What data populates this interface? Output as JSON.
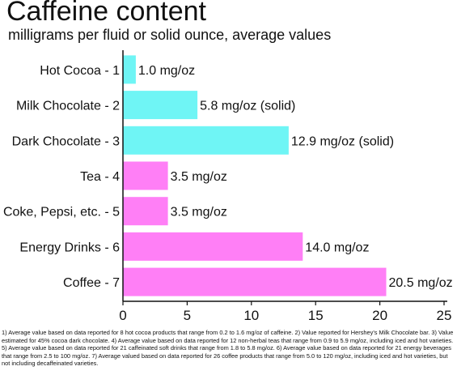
{
  "header": {
    "title": "Caffeine content",
    "subtitle": "milligrams per fluid or solid ounce, average values"
  },
  "colors": {
    "non_beverage": "#6ff5f5",
    "beverage": "#ff7ff6",
    "axis": "#111111",
    "text": "#111111"
  },
  "chart_data": {
    "type": "bar",
    "orientation": "horizontal",
    "title": "Caffeine content",
    "subtitle": "milligrams per fluid or solid ounce, average values",
    "xlabel": "",
    "ylabel": "",
    "xlim": [
      0,
      25
    ],
    "ticks": [
      0,
      5,
      10,
      15,
      20,
      25
    ],
    "grid": false,
    "categories": [
      "Hot Cocoa - 1",
      "Milk Chocolate - 2",
      "Dark Chocolate - 3",
      "Tea - 4",
      "Coke, Pepsi, etc. - 5",
      "Energy Drinks - 6",
      "Coffee - 7"
    ],
    "values": [
      1.0,
      5.8,
      12.9,
      3.5,
      3.5,
      14.0,
      20.5
    ],
    "data_labels": [
      "1.0 mg/oz",
      "5.8 mg/oz (solid)",
      "12.9 mg/oz (solid)",
      "3.5 mg/oz",
      "3.5 mg/oz",
      "14.0 mg/oz",
      "20.5 mg/oz"
    ],
    "bar_colors": [
      "#6ff5f5",
      "#6ff5f5",
      "#6ff5f5",
      "#ff7ff6",
      "#ff7ff6",
      "#ff7ff6",
      "#ff7ff6"
    ]
  },
  "footnote": "1) Average value based on data reported for 8 hot cocoa products that range from 0.2 to 1.6 mg/oz of caffeine.  2) Value reported for Hershey's Milk Chocolate bar.  3) Value estimated for 45% cocoa dark chocolate.  4) Average value based on data reported for 12 non-herbal teas that range from 0.9 to 5.9 mg/oz, including iced and hot varieties.  5) Average value based on data reported for 21 caffeinated soft drinks that range from 1.8 to 5.8 mg/oz.  6) Average value based on data reported for 21 energy beverages that range from 2.5 to 100 mg/oz.  7) Average valued based on data reported for 26 coffee products that range from 5.0 to 120 mg/oz, including iced and hot varieties, but not including decaffeinated varieties."
}
